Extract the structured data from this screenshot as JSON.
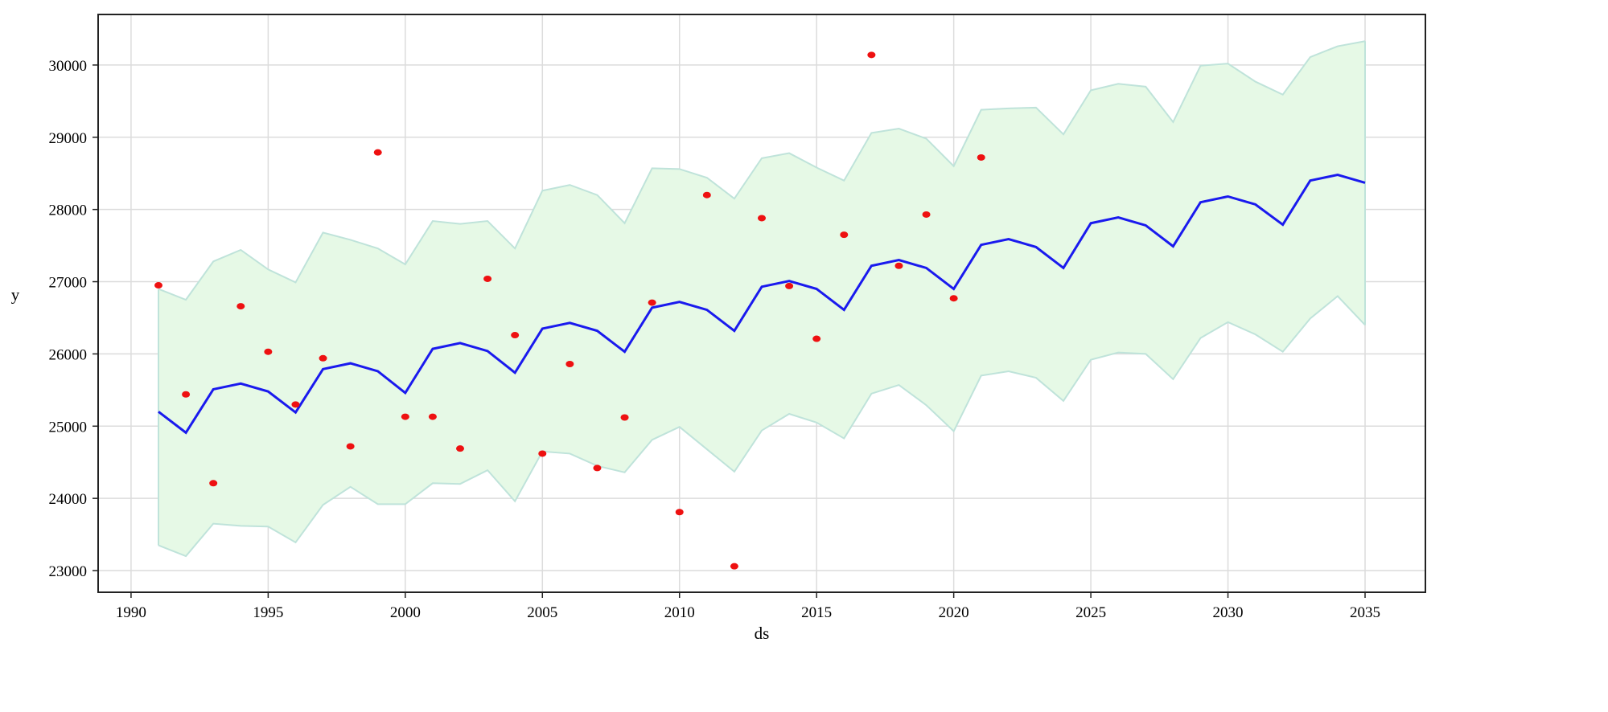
{
  "chart_data": {
    "type": "line",
    "title": "",
    "xlabel": "ds",
    "ylabel": "y",
    "xlim": [
      1988.8,
      2037.2
    ],
    "ylim": [
      22700,
      30700
    ],
    "xticks": [
      1990,
      1995,
      2000,
      2005,
      2010,
      2015,
      2020,
      2025,
      2030,
      2035
    ],
    "yticks": [
      23000,
      24000,
      25000,
      26000,
      27000,
      28000,
      29000,
      30000
    ],
    "grid": true,
    "legend": "none",
    "colors": {
      "forecast": "#1a1aee",
      "band_fill": "#e6f9e6",
      "band_edge": "#bfe3da",
      "observed": "#ee1111",
      "grid": "#dcdcdc",
      "frame": "#222222"
    },
    "x": [
      1991,
      1992,
      1993,
      1994,
      1995,
      1996,
      1997,
      1998,
      1999,
      2000,
      2001,
      2002,
      2003,
      2004,
      2005,
      2006,
      2007,
      2008,
      2009,
      2010,
      2011,
      2012,
      2013,
      2014,
      2015,
      2016,
      2017,
      2018,
      2019,
      2020,
      2021,
      2022,
      2023,
      2024,
      2025,
      2026,
      2027,
      2028,
      2029,
      2030,
      2031,
      2032,
      2033,
      2034,
      2035
    ],
    "series": [
      {
        "role": "forecast",
        "values": [
          25200,
          24910,
          25510,
          25590,
          25480,
          25190,
          25790,
          25870,
          25760,
          25460,
          26070,
          26150,
          26040,
          25740,
          26350,
          26430,
          26320,
          26030,
          26640,
          26720,
          26610,
          26320,
          26930,
          27010,
          26900,
          26610,
          27220,
          27300,
          27190,
          26900,
          27510,
          27590,
          27480,
          27190,
          27810,
          27890,
          27780,
          27490,
          28100,
          28180,
          28070,
          27790,
          28400,
          28480,
          28370
        ]
      },
      {
        "role": "band_upper",
        "values": [
          26900,
          26750,
          27280,
          27440,
          27170,
          26990,
          27680,
          27580,
          27460,
          27240,
          27840,
          27800,
          27840,
          27460,
          28260,
          28340,
          28200,
          27810,
          28570,
          28560,
          28440,
          28150,
          28710,
          28780,
          28580,
          28400,
          29060,
          29120,
          28980,
          28600,
          29380,
          29400,
          29410,
          29040,
          29650,
          29740,
          29700,
          29210,
          29990,
          30020,
          29770,
          29590,
          30110,
          30260,
          30330
        ]
      },
      {
        "role": "band_lower",
        "values": [
          23350,
          23200,
          23650,
          23620,
          23610,
          23390,
          23910,
          24160,
          23920,
          23920,
          24210,
          24200,
          24390,
          23960,
          24650,
          24620,
          24450,
          24360,
          24810,
          24990,
          24680,
          24370,
          24940,
          25170,
          25050,
          24830,
          25450,
          25570,
          25290,
          24930,
          25700,
          25760,
          25670,
          25350,
          25920,
          26020,
          26000,
          25650,
          26220,
          26440,
          26270,
          26030,
          26490,
          26800,
          26400
        ]
      },
      {
        "role": "observed",
        "x": [
          1991,
          1992,
          1993,
          1994,
          1995,
          1996,
          1997,
          1998,
          1999,
          2000,
          2001,
          2002,
          2003,
          2004,
          2005,
          2006,
          2007,
          2008,
          2009,
          2010,
          2011,
          2012,
          2013,
          2014,
          2015,
          2016,
          2017,
          2018,
          2019,
          2020,
          2021
        ],
        "values": [
          26950,
          25440,
          24210,
          26660,
          26030,
          25300,
          25940,
          24720,
          28790,
          25130,
          25130,
          24690,
          27040,
          26260,
          24620,
          25860,
          24420,
          25120,
          26710,
          23810,
          28200,
          23060,
          27880,
          26940,
          26210,
          27650,
          30140,
          27220,
          27930,
          26770,
          28720
        ]
      }
    ]
  }
}
